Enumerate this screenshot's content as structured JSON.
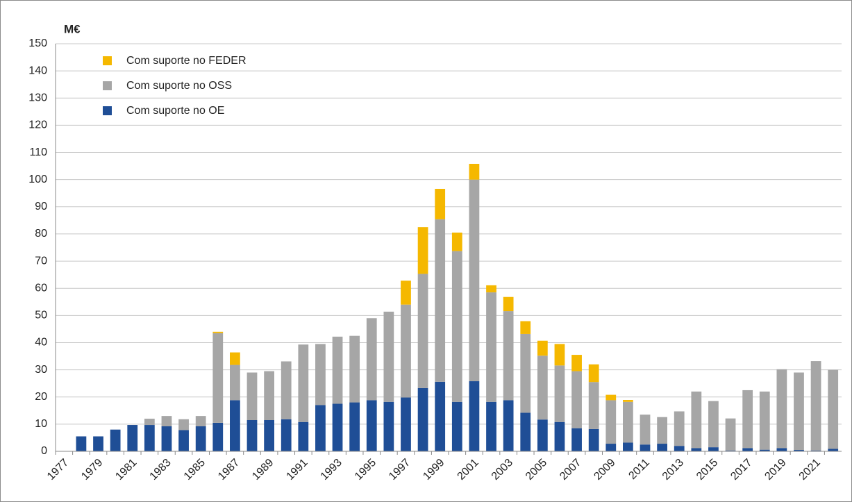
{
  "chart_data": {
    "type": "stacked_bar",
    "y_label": "M€",
    "categories": [
      "1977",
      null,
      "1979",
      null,
      "1981",
      null,
      "1983",
      null,
      "1985",
      null,
      "1987",
      null,
      "1989",
      null,
      "1991",
      null,
      "1993",
      null,
      "1995",
      null,
      "1997",
      null,
      "1999",
      null,
      "2001",
      null,
      "2003",
      null,
      "2005",
      null,
      "2007",
      null,
      "2009",
      null,
      "2011",
      null,
      "2013",
      null,
      "2015",
      null,
      "2017",
      null,
      "2019",
      null,
      "2021",
      null
    ],
    "series": [
      {
        "name": "Com suporte no OE",
        "color": "#1f4e96",
        "values": [
          0,
          5.5,
          5.5,
          8,
          9.7,
          9.7,
          9.2,
          7.8,
          9.2,
          10.5,
          18.8,
          11.5,
          11.5,
          11.8,
          10.8,
          17,
          17.5,
          18,
          18.8,
          18.2,
          19.8,
          23.3,
          25.6,
          18.2,
          25.8,
          18.2,
          18.8,
          14.2,
          11.7,
          10.8,
          8.5,
          8.2,
          2.8,
          3.2,
          2.5,
          2.8,
          2,
          1.2,
          1.5,
          0.3,
          1.2,
          0.6,
          1.2,
          0.5,
          0.3,
          0.9
        ]
      },
      {
        "name": "Com suporte no OSS",
        "color": "#a6a6a6",
        "values": [
          0,
          0,
          0,
          0,
          0,
          2.3,
          3.8,
          4,
          3.8,
          33,
          13,
          17.5,
          18,
          21.3,
          28.5,
          22.5,
          24.7,
          24.5,
          30.2,
          33.2,
          34.2,
          42,
          59.8,
          55.5,
          74.2,
          40.3,
          32.8,
          29,
          23.5,
          20.8,
          21,
          17.3,
          16,
          15,
          11,
          9.8,
          12.7,
          20.8,
          17,
          11.8,
          21.3,
          21.4,
          29,
          28.5,
          32.9,
          29.1
        ]
      },
      {
        "name": "Com suporte no FEDER",
        "color": "#f5b800",
        "values": [
          0,
          0,
          0,
          0,
          0,
          0,
          0,
          0,
          0,
          0.5,
          4.6,
          0,
          0,
          0,
          0,
          0,
          0,
          0,
          0,
          0,
          8.8,
          17.2,
          11.2,
          6.8,
          5.8,
          2.6,
          5.2,
          4.7,
          5.5,
          7.9,
          6,
          6.5,
          2,
          0.7,
          0,
          0,
          0,
          0,
          0,
          0,
          0,
          0,
          0,
          0,
          0,
          0
        ]
      }
    ],
    "ylim": [
      0,
      150
    ],
    "yticks": [
      0,
      10,
      20,
      30,
      40,
      50,
      60,
      70,
      80,
      90,
      100,
      110,
      120,
      130,
      140,
      150
    ],
    "grid": true
  }
}
